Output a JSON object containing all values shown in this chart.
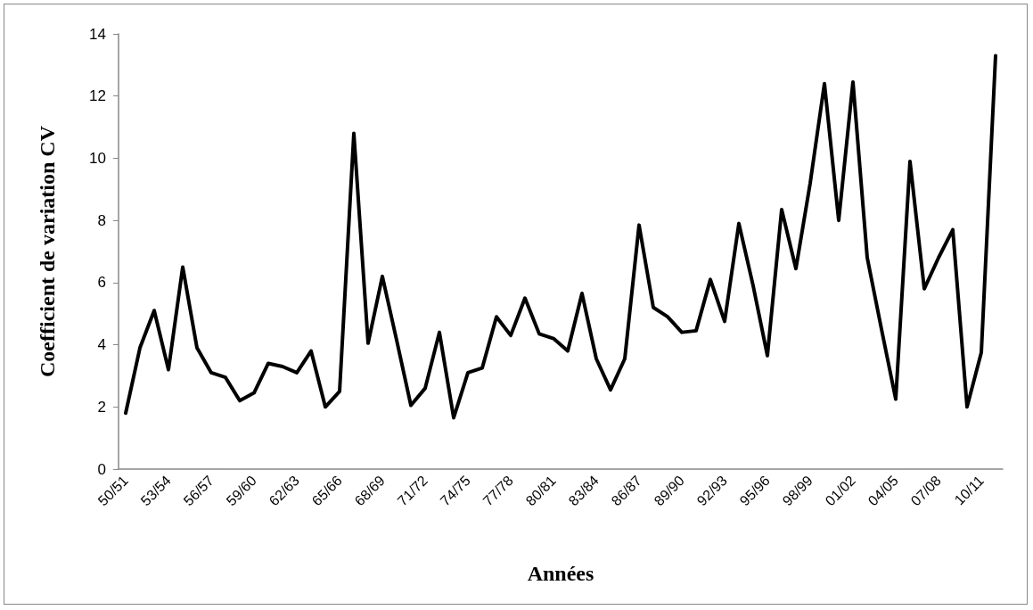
{
  "chart_data": {
    "type": "line",
    "xlabel": "Années",
    "ylabel": "Coefficient de variation CV",
    "categories": [
      "50/51",
      null,
      null,
      "53/54",
      null,
      null,
      "56/57",
      null,
      null,
      "59/60",
      null,
      null,
      "62/63",
      null,
      null,
      "65/66",
      null,
      null,
      "68/69",
      null,
      null,
      "71/72",
      null,
      null,
      "74/75",
      null,
      null,
      "77/78",
      null,
      null,
      "80/81",
      null,
      null,
      "83/84",
      null,
      null,
      "86/87",
      null,
      null,
      "89/90",
      null,
      null,
      "92/93",
      null,
      null,
      "95/96",
      null,
      null,
      "98/99",
      null,
      null,
      "01/02",
      null,
      null,
      "04/05",
      null,
      null,
      "07/08",
      null,
      null,
      "10/11",
      null
    ],
    "series": [
      {
        "color": "#000000",
        "values": [
          1.8,
          3.9,
          5.1,
          3.2,
          6.5,
          3.9,
          3.1,
          2.95,
          2.2,
          2.45,
          3.4,
          3.3,
          3.1,
          3.8,
          2.0,
          2.5,
          10.8,
          4.05,
          6.2,
          4.15,
          2.05,
          2.6,
          4.4,
          1.65,
          3.1,
          3.25,
          4.9,
          4.3,
          5.5,
          4.35,
          4.2,
          3.8,
          5.65,
          3.55,
          2.55,
          3.55,
          7.85,
          5.2,
          4.9,
          4.4,
          4.45,
          6.1,
          4.75,
          7.9,
          5.9,
          3.65,
          8.35,
          6.45,
          9.2,
          12.4,
          8.0,
          12.45,
          6.8,
          4.5,
          2.25,
          9.9,
          5.8,
          6.8,
          7.7,
          2.0,
          3.75,
          13.3
        ]
      }
    ],
    "ylim": [
      0,
      14
    ],
    "yticks": [
      0,
      2,
      4,
      6,
      8,
      10,
      12,
      14
    ],
    "grid": false,
    "marker": "none",
    "line_style": "solid"
  }
}
